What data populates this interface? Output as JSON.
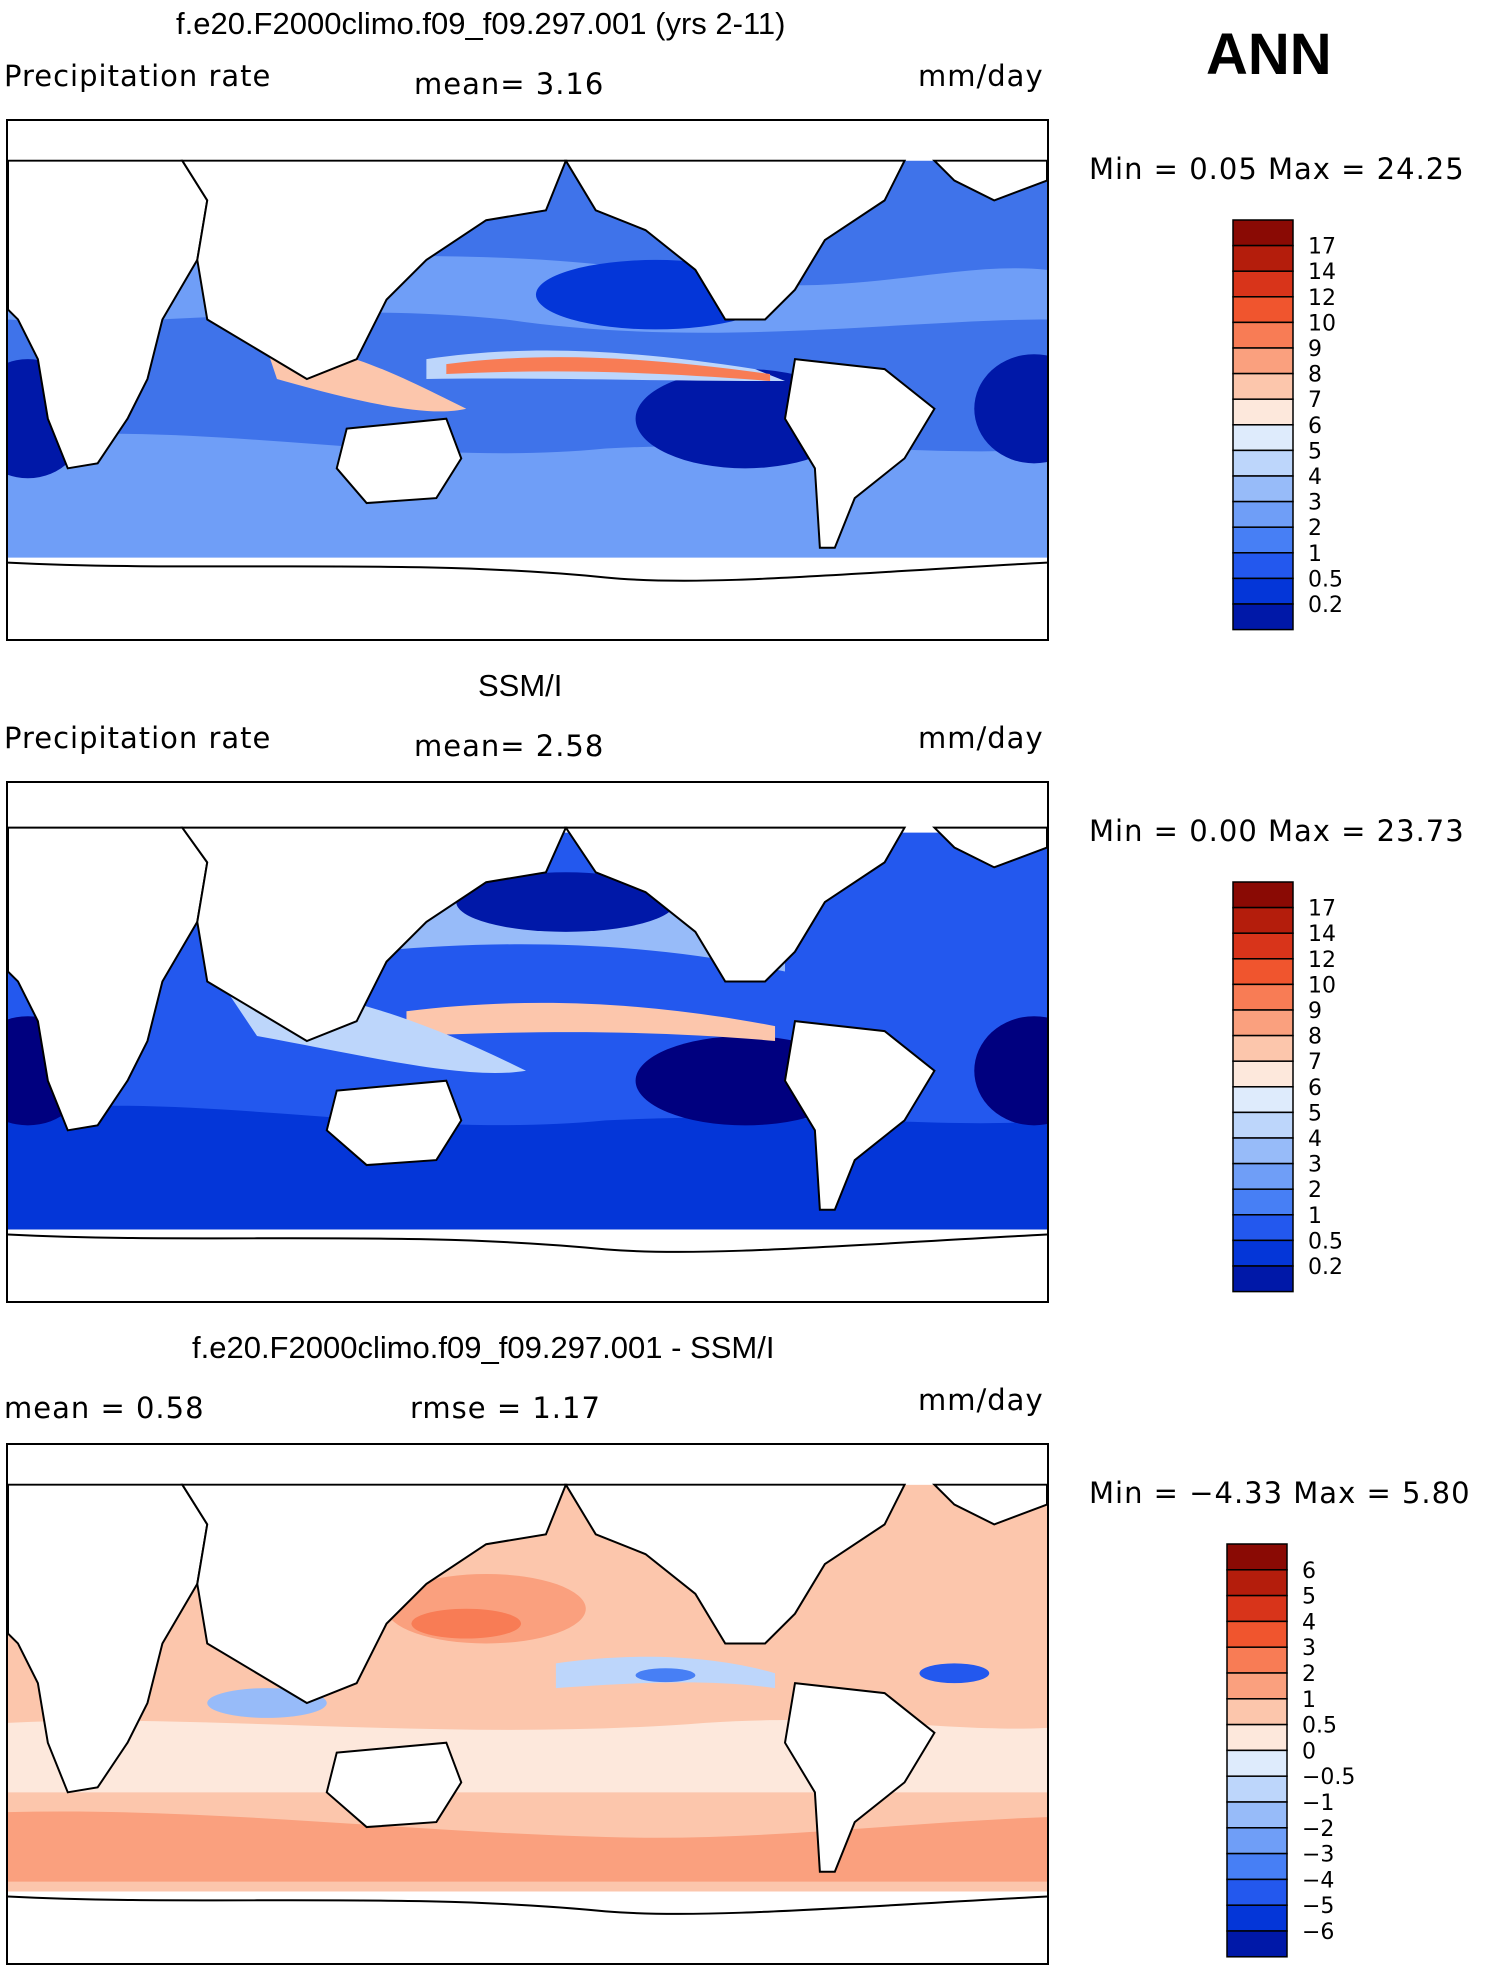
{
  "season": "ANN",
  "units": "mm/day",
  "palette": {
    "precip": [
      "#00007f",
      "#0018a8",
      "#0436d8",
      "#2358ee",
      "#477ff5",
      "#6f9ef7",
      "#97bbf9",
      "#bdd6fb",
      "#deebfc",
      "#fde8dc",
      "#fcc6ac",
      "#faa07e",
      "#f87c55",
      "#f0552e",
      "#d8341a",
      "#b41d0c",
      "#8a0a04"
    ],
    "diff": [
      "#00007f",
      "#0018a8",
      "#0436d8",
      "#2358ee",
      "#477ff5",
      "#6f9ef7",
      "#97bbf9",
      "#bdd6fb",
      "#deebfc",
      "#fde8dc",
      "#fcc6ac",
      "#faa07e",
      "#f87c55",
      "#f0552e",
      "#d8341a",
      "#b41d0c",
      "#8a0a04"
    ]
  },
  "panels": [
    {
      "id": "model",
      "title": "f.e20.F2000climo.f09_f09.297.001 (yrs 2-11)",
      "left_label": "Precipitation rate",
      "stat_text": "mean=   3.16",
      "units": "mm/day",
      "minmax_text": "Min =   0.05 Max =  24.25",
      "colorbar_ticks": [
        "17",
        "14",
        "12",
        "10",
        "9",
        "8",
        "7",
        "6",
        "5",
        "4",
        "3",
        "2",
        "1",
        "0.5",
        "0.2"
      ]
    },
    {
      "id": "obs",
      "title": "SSM/I",
      "left_label": "Precipitation rate",
      "stat_text": "mean=   2.58",
      "units": "mm/day",
      "minmax_text": "Min =   0.00 Max =  23.73",
      "colorbar_ticks": [
        "17",
        "14",
        "12",
        "10",
        "9",
        "8",
        "7",
        "6",
        "5",
        "4",
        "3",
        "2",
        "1",
        "0.5",
        "0.2"
      ]
    },
    {
      "id": "diff",
      "title": "f.e20.F2000climo.f09_f09.297.001 - SSM/I",
      "left_label": "mean =   0.58",
      "stat_text": "rmse =   1.17",
      "units": "mm/day",
      "minmax_text": "Min =  −4.33 Max =   5.80",
      "colorbar_ticks": [
        "6",
        "5",
        "4",
        "3",
        "2",
        "1",
        "0.5",
        "0",
        "−0.5",
        "−1",
        "−2",
        "−3",
        "−4",
        "−5",
        "−6"
      ]
    }
  ]
}
